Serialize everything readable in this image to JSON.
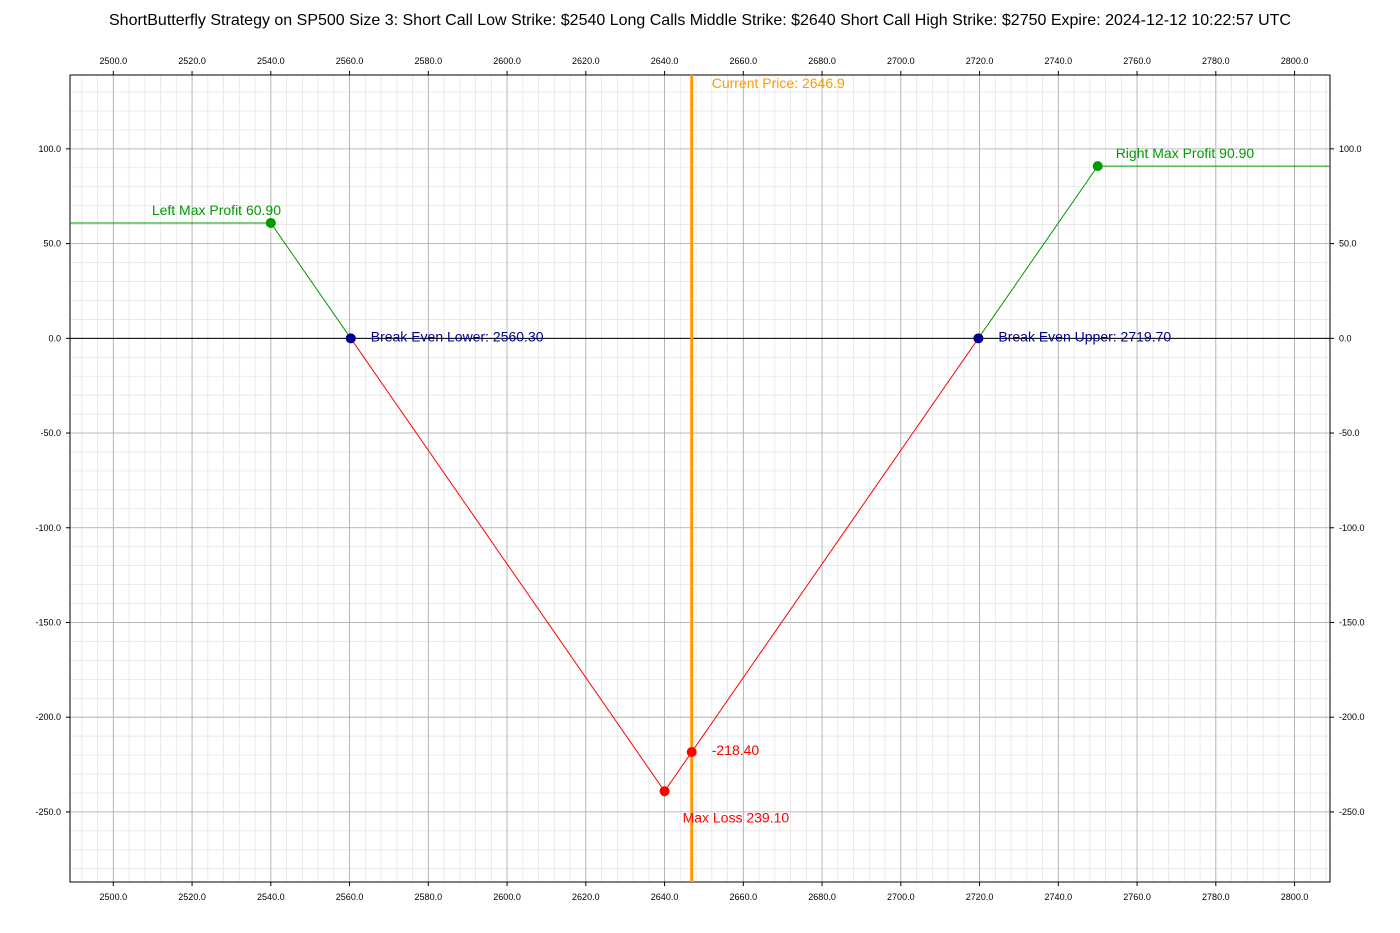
{
  "chart_data": {
    "type": "line",
    "title": "ShortButterfly Strategy on SP500 Size 3:  Short Call Low Strike: $2540  Long Calls Middle Strike: $2640  Short Call High Strike: $2750  Expire: 2024-12-12 10:22:57 UTC",
    "xlabel": "",
    "ylabel": "",
    "xlim": [
      2489,
      2809
    ],
    "ylim": [
      -287,
      139
    ],
    "x_ticks": [
      "2500.0",
      "2520.0",
      "2540.0",
      "2560.0",
      "2580.0",
      "2600.0",
      "2620.0",
      "2640.0",
      "2660.0",
      "2680.0",
      "2700.0",
      "2720.0",
      "2740.0",
      "2760.0",
      "2780.0",
      "2800.0"
    ],
    "x_tick_values": [
      2500,
      2520,
      2540,
      2560,
      2580,
      2600,
      2620,
      2640,
      2660,
      2680,
      2700,
      2720,
      2740,
      2760,
      2780,
      2800
    ],
    "y_ticks": [
      "100.0",
      "50.0",
      "0.0",
      "-50.0",
      "-100.0",
      "-150.0",
      "-200.0",
      "-250.0"
    ],
    "y_tick_values": [
      100,
      50,
      0,
      -50,
      -100,
      -150,
      -200,
      -250
    ],
    "grid": true,
    "series": [
      {
        "name": "",
        "color": "#009900",
        "x": [
          2489,
          2540,
          2560.3
        ],
        "y": [
          60.9,
          60.9,
          0
        ]
      },
      {
        "name": "",
        "color": "#ff0000",
        "x": [
          2560.3,
          2640,
          2719.7
        ],
        "y": [
          0,
          -239.1,
          0
        ]
      },
      {
        "name": "",
        "color": "#009900",
        "x": [
          2719.7,
          2750,
          2809
        ],
        "y": [
          0,
          90.9,
          90.9
        ]
      }
    ],
    "current_price": {
      "x": 2646.9,
      "label": "Current Price: 2646.9",
      "color": "#ff9900"
    },
    "points": [
      {
        "x": 2540,
        "y": 60.9,
        "label": "Left Max Profit 60.90",
        "color": "#009900",
        "label_pos": "above-left"
      },
      {
        "x": 2560.3,
        "y": 0,
        "label": "Break Even Lower: 2560.30",
        "color": "#00008b",
        "label_pos": "right"
      },
      {
        "x": 2640,
        "y": -239.1,
        "label": "Max Loss 239.10",
        "color": "#ff0000",
        "label_pos": "below-right"
      },
      {
        "x": 2646.9,
        "y": -218.4,
        "label": "-218.40",
        "color": "#ff0000",
        "label_pos": "right"
      },
      {
        "x": 2719.7,
        "y": 0,
        "label": "Break Even Upper: 2719.70",
        "color": "#00008b",
        "label_pos": "right"
      },
      {
        "x": 2750,
        "y": 90.9,
        "label": "Right Max Profit 90.90",
        "color": "#009900",
        "label_pos": "above-right"
      }
    ]
  }
}
